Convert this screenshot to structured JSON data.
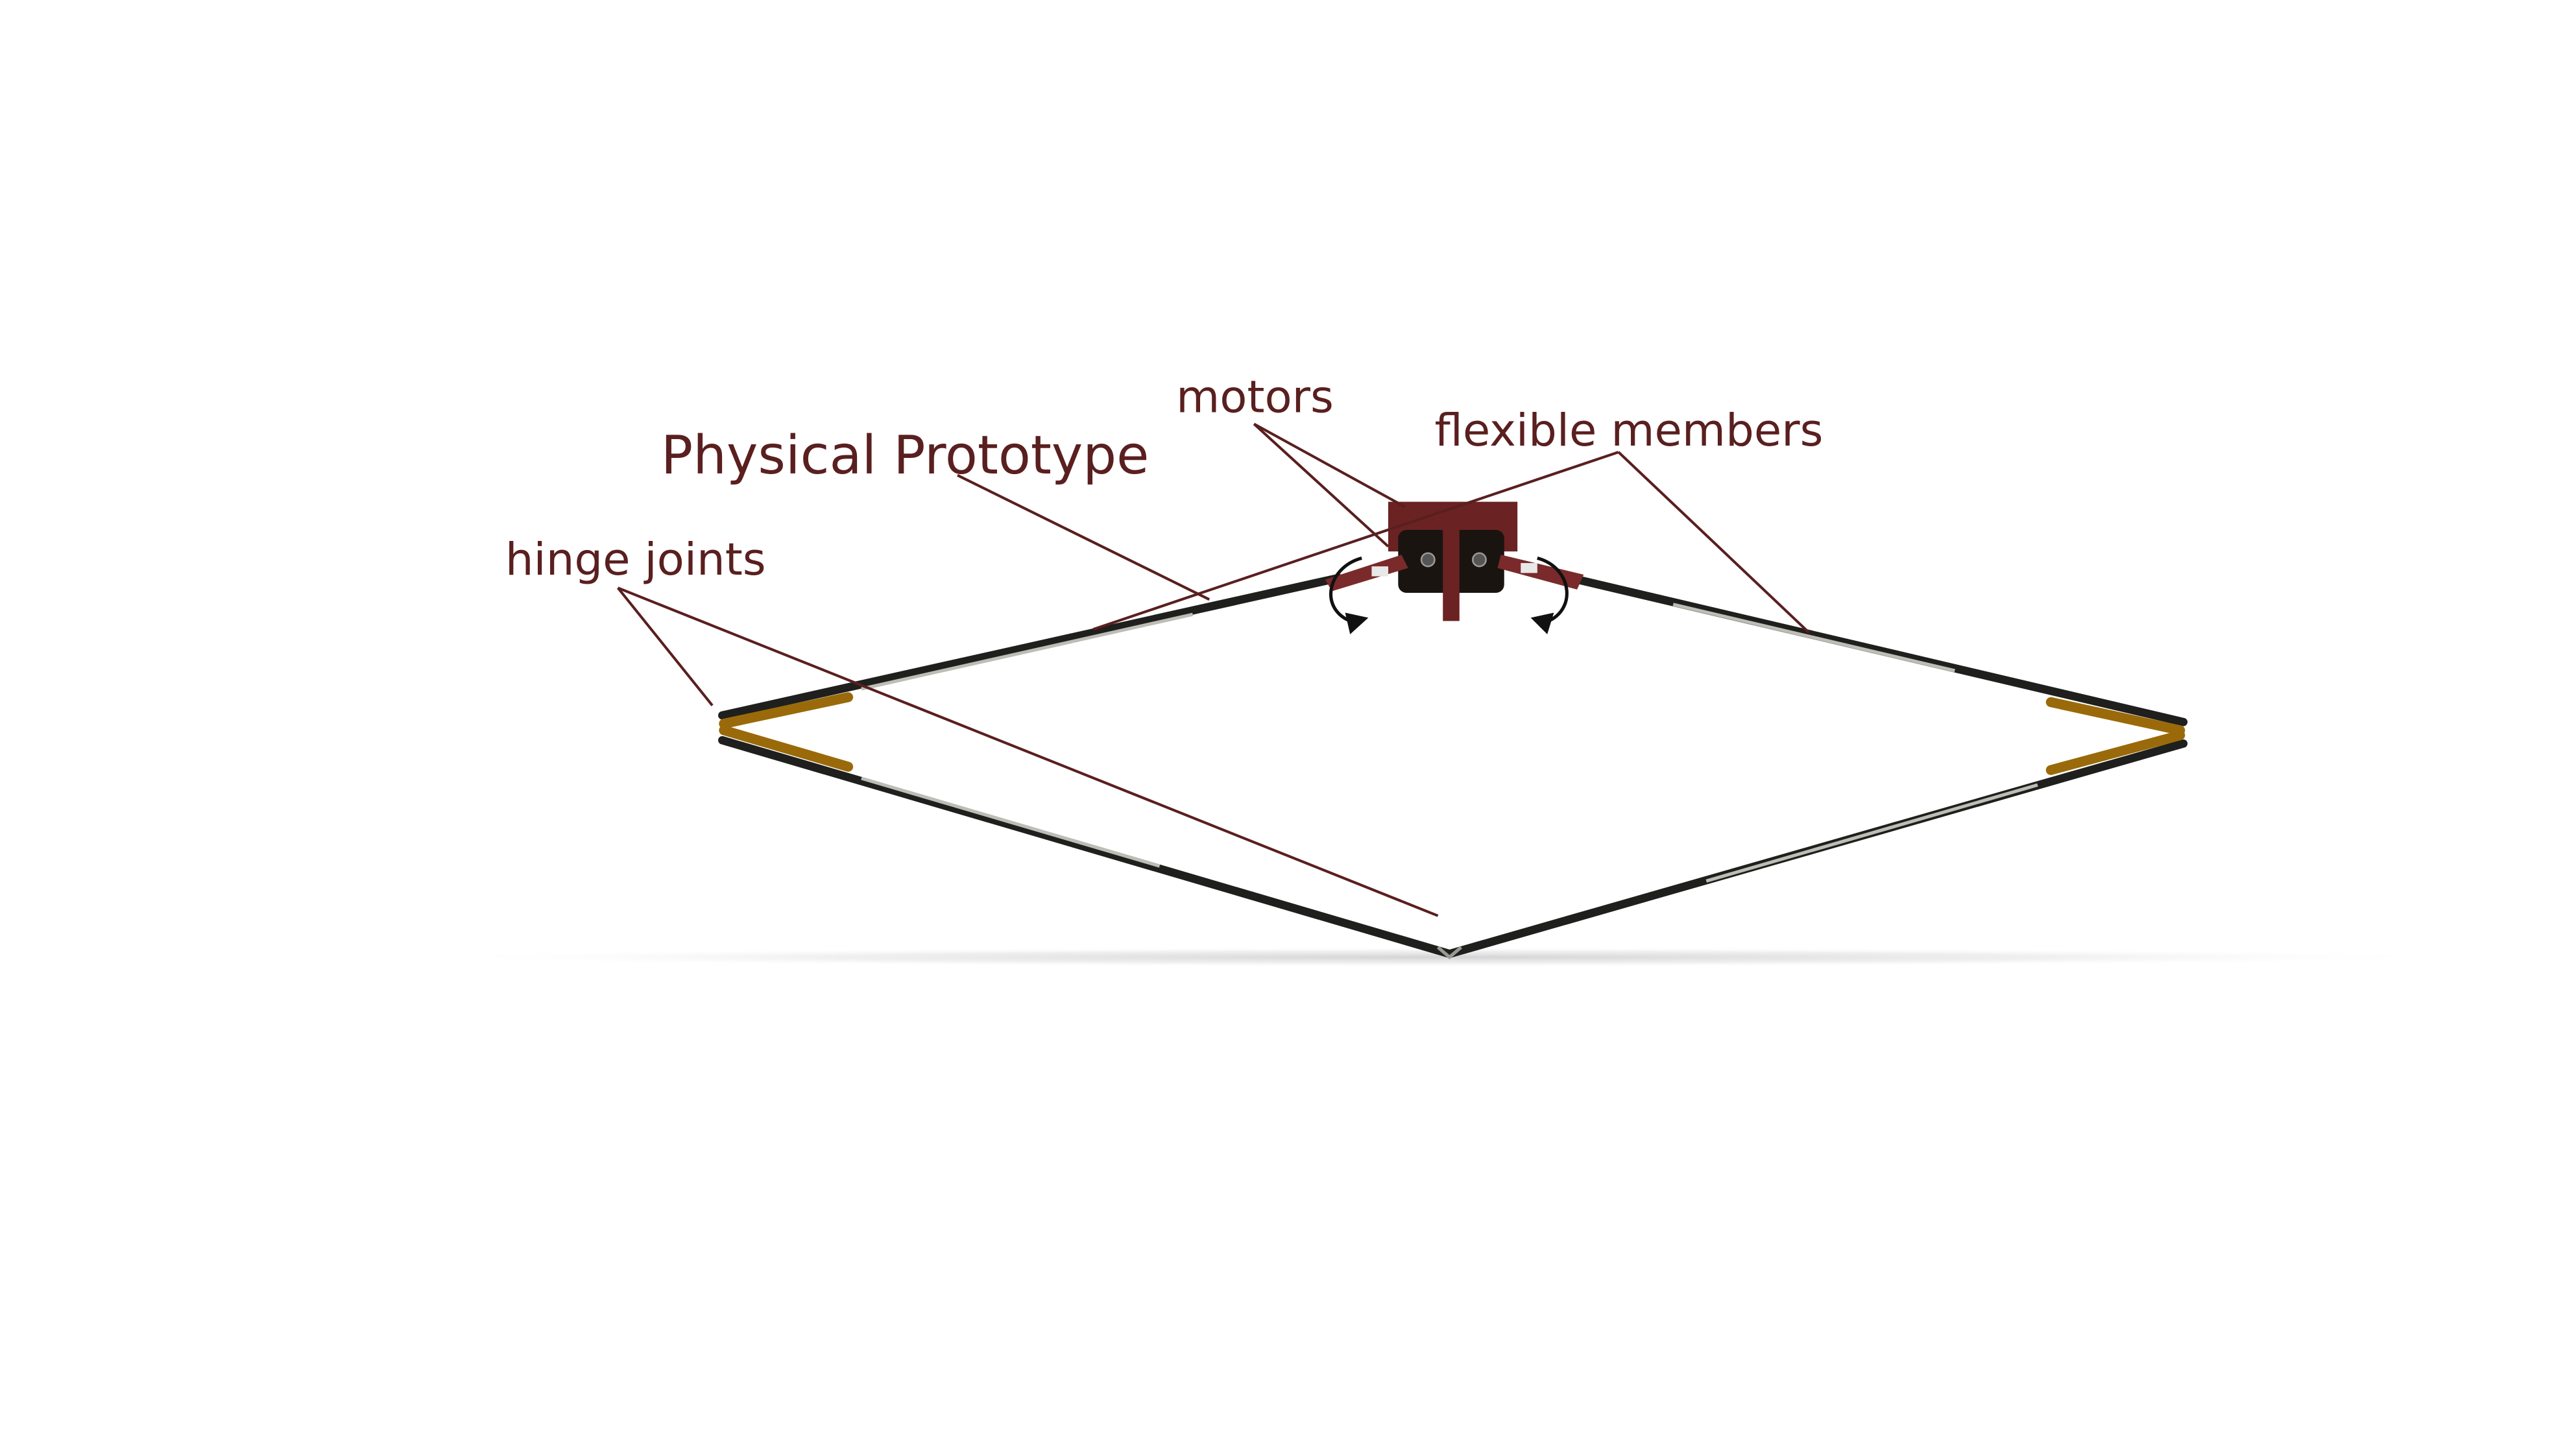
{
  "diagram": {
    "title": "Physical Prototype",
    "labels": {
      "motors": "motors",
      "flexible_members": "flexible members",
      "hinge_joints": "hinge joints"
    }
  },
  "colors": {
    "label_text": "#5a1f1f",
    "leader_line": "#5a1f1f",
    "frame_bar": "#1f1f1d",
    "frame_highlight": "#c9c9c3",
    "hinge_gold": "#9a6a0a",
    "motor_mount": "#6b2222",
    "motor_body": "#1a1410",
    "ground_shadow": "#d7d7d7"
  },
  "icons": [
    "curved-arrow-ccw-icon",
    "curved-arrow-cw-icon"
  ]
}
